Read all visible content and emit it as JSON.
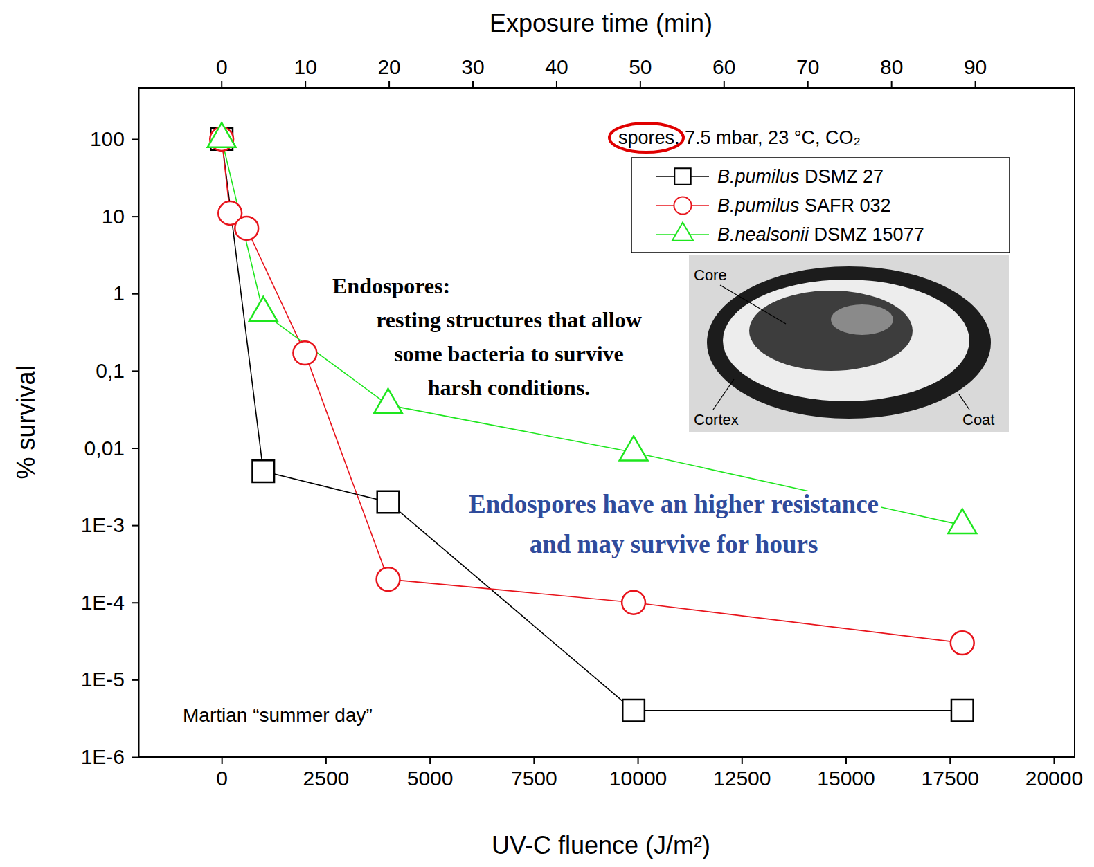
{
  "chart_data": {
    "type": "line",
    "xlabel": "UV-C fluence (J/m²)",
    "x2label": "Exposure time (min)",
    "ylabel": "% survival",
    "xlim": [
      -2000,
      20500
    ],
    "xticks": [
      0,
      2500,
      5000,
      7500,
      10000,
      12500,
      15000,
      17500,
      20000
    ],
    "x2lim": [
      -9.9,
      101.9
    ],
    "x2ticks": [
      0,
      10,
      20,
      30,
      40,
      50,
      60,
      70,
      80,
      90
    ],
    "ylim": [
      1e-06,
      460
    ],
    "yticks": [
      {
        "value": 1e-06,
        "label": "1E-6"
      },
      {
        "value": 1e-05,
        "label": "1E-5"
      },
      {
        "value": 0.0001,
        "label": "1E-4"
      },
      {
        "value": 0.001,
        "label": "1E-3"
      },
      {
        "value": 0.01,
        "label": "0,01"
      },
      {
        "value": 0.1,
        "label": "0,1"
      },
      1,
      10,
      100
    ],
    "log": "y",
    "grid": false,
    "legend": "upper right",
    "series": [
      {
        "name": "B.pumilus DSMZ 27",
        "color": "#000000",
        "marker": "square",
        "line_style": "solid",
        "x": [
          0,
          1000,
          4000,
          9900,
          17800
        ],
        "values": [
          100,
          0.005,
          0.002,
          4e-06,
          4e-06
        ]
      },
      {
        "name": "B.pumilus SAFR 032",
        "color": "#e8141c",
        "marker": "circle",
        "line_style": "solid",
        "x": [
          0,
          200,
          600,
          2000,
          4000,
          9900,
          17800
        ],
        "values": [
          100,
          11,
          7,
          0.17,
          0.0002,
          0.0001,
          3e-05
        ]
      },
      {
        "name": "B.nealsonii DSMZ 15077",
        "color": "#1ee61e",
        "marker": "triangle",
        "line_style": "solid",
        "x": [
          0,
          1000,
          4000,
          9900,
          17800
        ],
        "values": [
          100,
          0.56,
          0.036,
          0.0088,
          0.001
        ]
      }
    ],
    "annotations": {
      "conditions": "spores, 7.5 mbar, 23 °C, CO₂",
      "endospore_heading": "Endospores:",
      "endospore_text": [
        "resting structures that allow",
        "some bacteria to survive",
        "harsh conditions."
      ],
      "resistance_note": [
        "Endospores have an higher resistance",
        "and may survive for hours"
      ],
      "martian_day": "Martian “summer day”",
      "micrograph_labels": [
        "Core",
        "Cortex",
        "Coat"
      ]
    }
  }
}
